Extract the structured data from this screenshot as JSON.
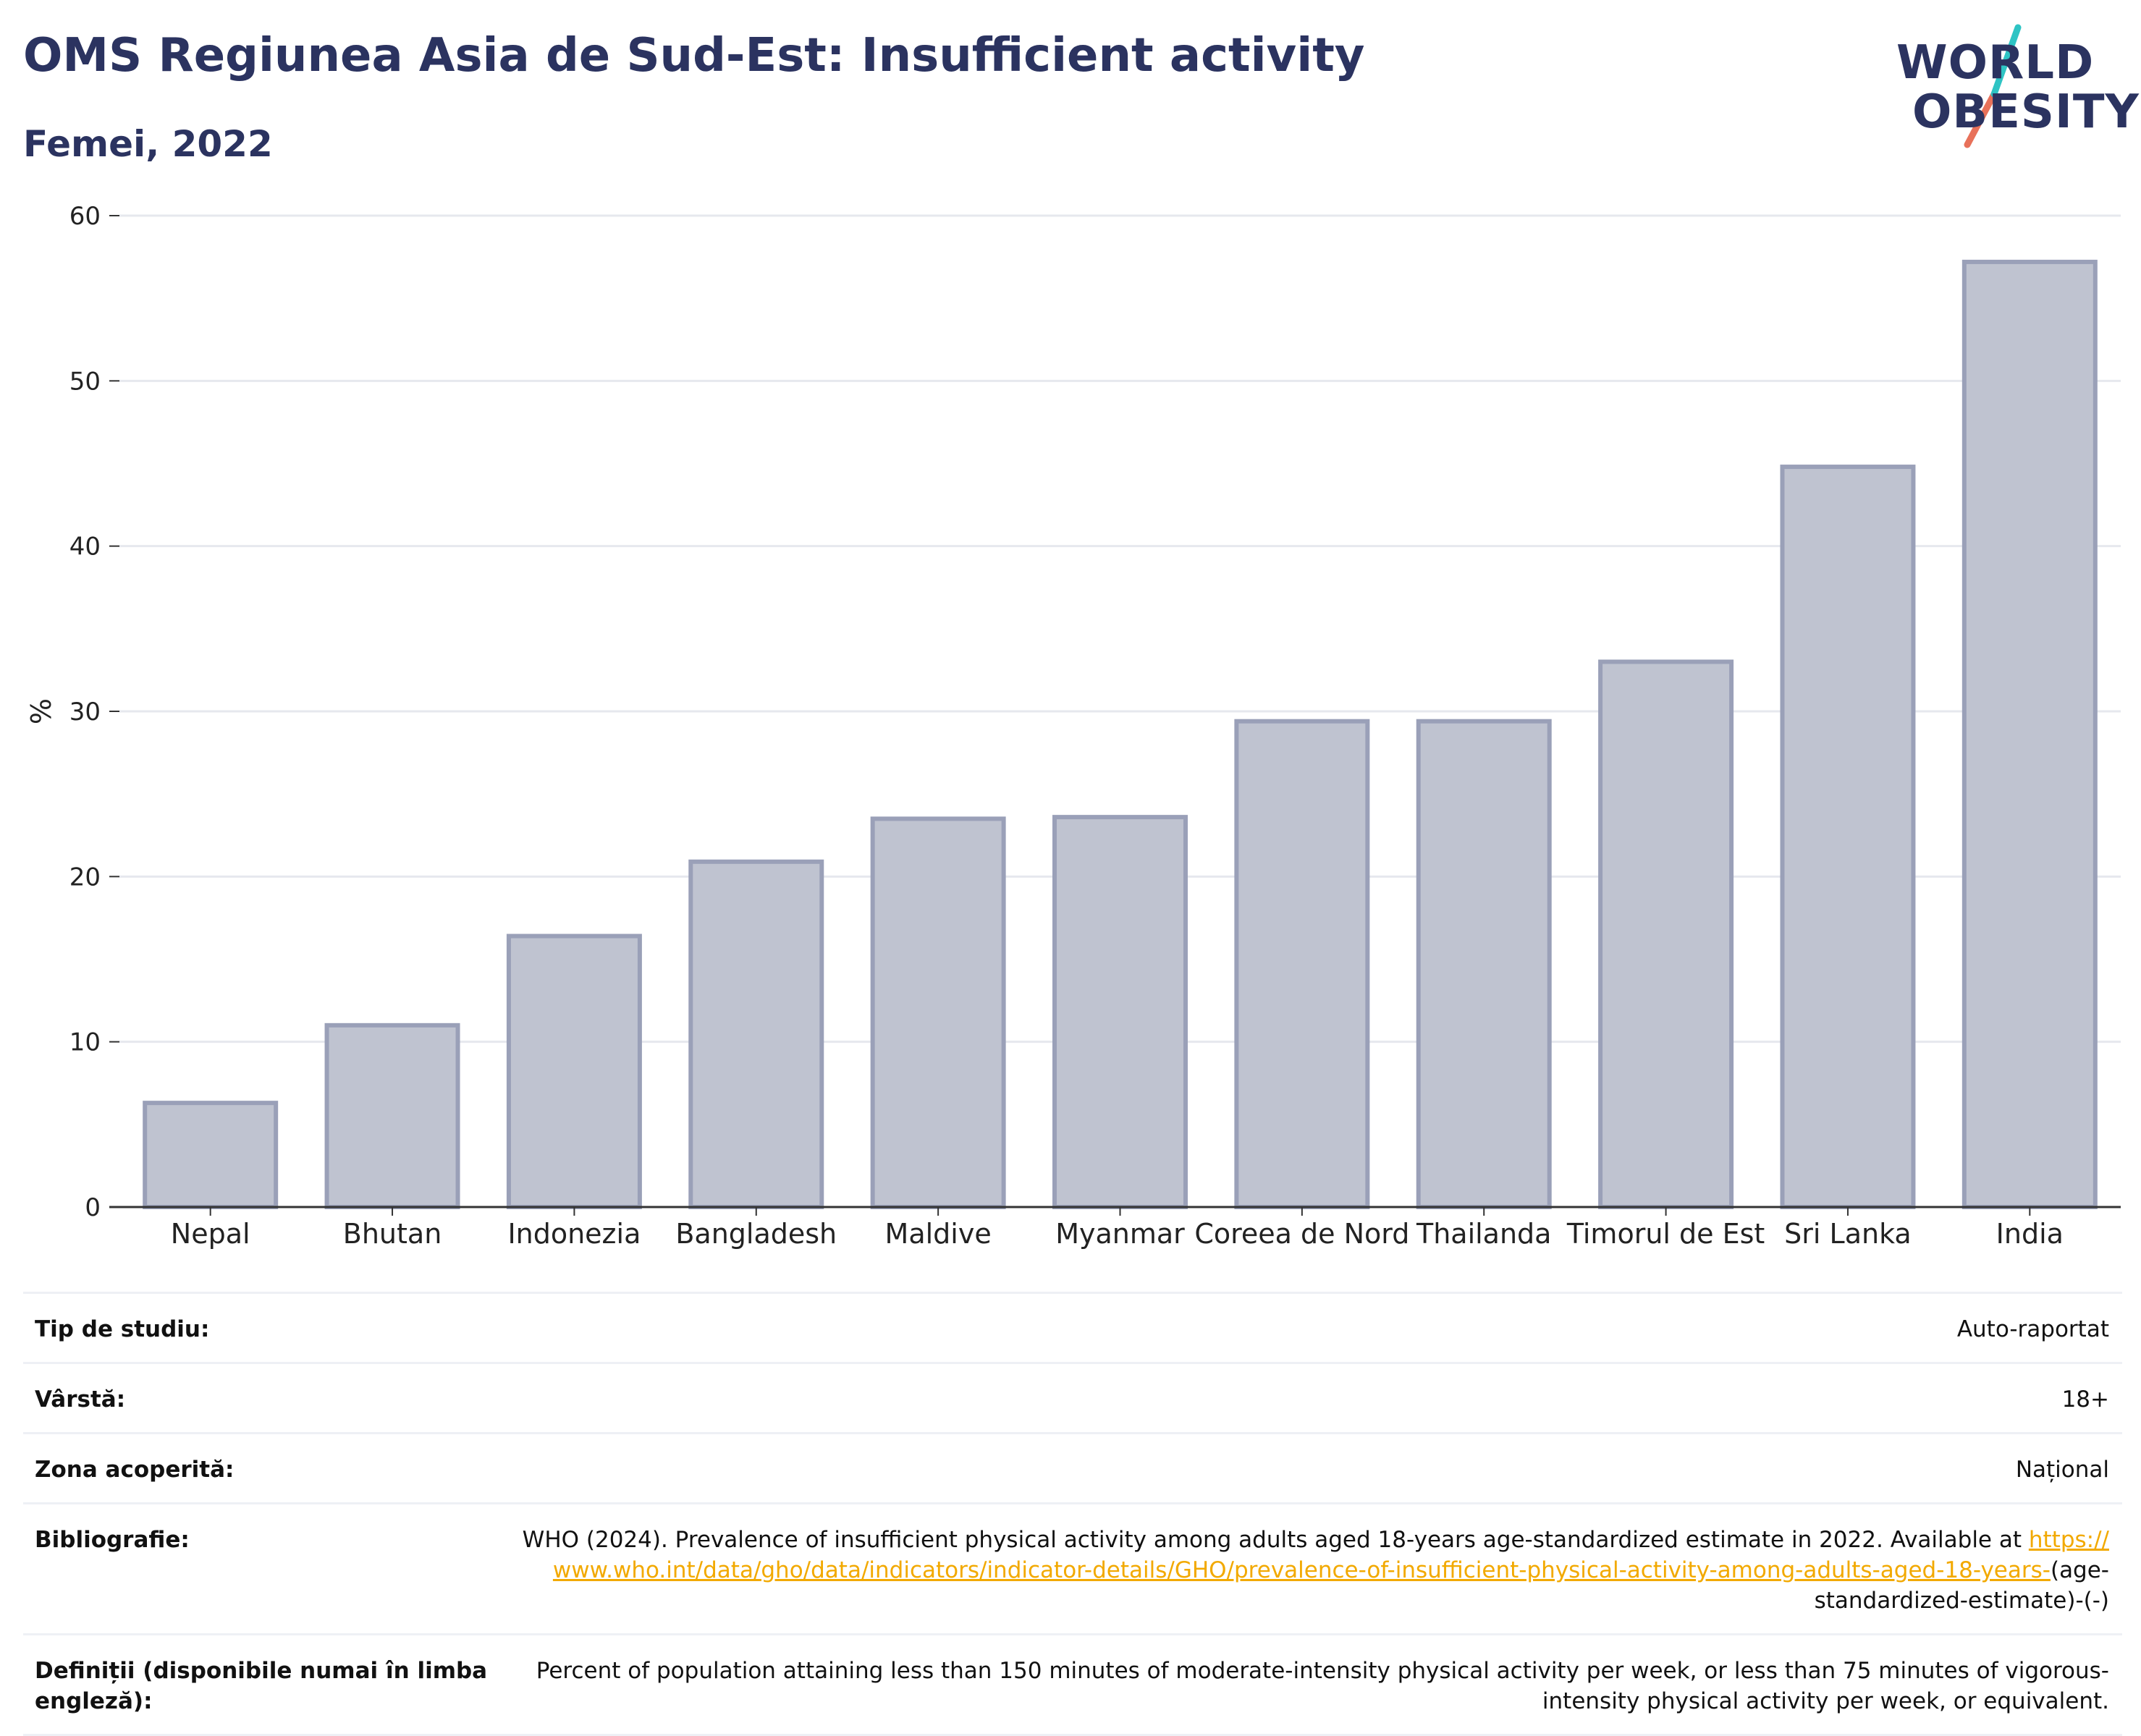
{
  "header": {
    "title": "OMS Regiunea Asia de Sud-Est: Insufficient activity",
    "subtitle": "Femei, 2022"
  },
  "logo": {
    "line1": "WORLD",
    "line2": "OBESITY",
    "colors": {
      "text": "#2b3360",
      "slash_top": "#2ec4c4",
      "slash_bottom": "#e8715a"
    }
  },
  "chart_data": {
    "type": "bar",
    "title": "OMS Regiunea Asia de Sud-Est: Insufficient activity",
    "subtitle": "Femei, 2022",
    "xlabel": "",
    "ylabel": "%",
    "ylim": [
      0,
      60
    ],
    "yticks": [
      0,
      10,
      20,
      30,
      40,
      50,
      60
    ],
    "grid": true,
    "categories": [
      "Nepal",
      "Bhutan",
      "Indonezia",
      "Bangladesh",
      "Maldive",
      "Myanmar",
      "Coreea de Nord",
      "Thailanda",
      "Timorul de Est",
      "Sri Lanka",
      "India"
    ],
    "values": [
      6.3,
      11.0,
      16.4,
      20.9,
      23.5,
      23.6,
      29.4,
      29.4,
      33.0,
      44.8,
      57.2
    ],
    "colors": {
      "bar_fill": "#bfc3d0",
      "bar_stroke": "#9aa0b8",
      "grid": "#e6e8ee",
      "axis": "#333333"
    }
  },
  "meta": {
    "study_type_label": "Tip de studiu:",
    "study_type_value": "Auto-raportat",
    "age_label": "Vârstă:",
    "age_value": "18+",
    "coverage_label": "Zona acoperită:",
    "coverage_value": "Național",
    "bibliography_label": "Bibliografie:",
    "bibliography_text": "WHO (2024). Prevalence of insufficient physical activity among adults aged 18-years age-standardized estimate in 2022. Available at",
    "bibliography_link": "https://www.who.int/data/gho/data/indicators/indicator-details/GHO/prevalence-of-insufficient-physical-activity-among-adults-aged-18-years-",
    "bibliography_suffix": "(age-standardized-estimate)-(-)",
    "definitions_label": "Definiții (disponibile numai în limba engleză):",
    "definitions_value": "Percent of population attaining less than 150 minutes of moderate-intensity physical activity per week, or less than 75 minutes of vigorous-intensity physical activity per week, or equivalent."
  }
}
